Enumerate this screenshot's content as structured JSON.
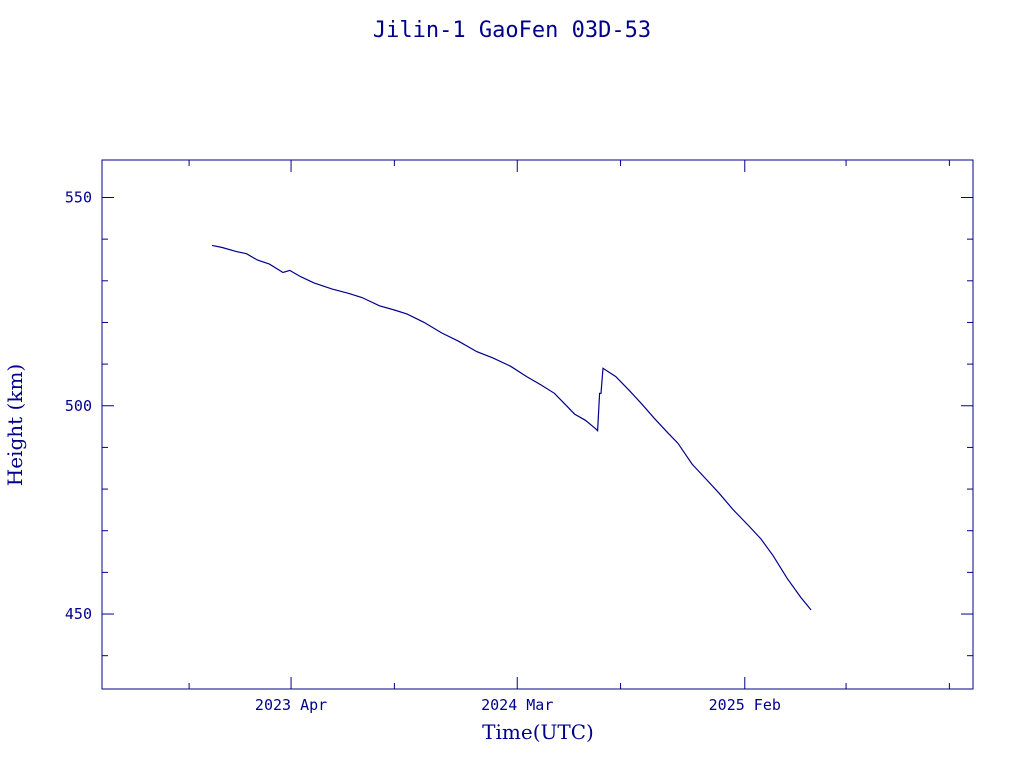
{
  "chart_data": {
    "type": "line",
    "title": "Jilin-1 GaoFen 03D-53",
    "xlabel": "Time(UTC)",
    "ylabel": "Height (km)",
    "ylim": [
      432,
      559
    ],
    "xlim": [
      "2022-06-25",
      "2026-01-05"
    ],
    "y_major_ticks": [
      450,
      500,
      550
    ],
    "y_minor_step": 10,
    "x_major_ticks": [
      {
        "label": "2023 Apr",
        "date": "2023-04-01"
      },
      {
        "label": "2024 Mar",
        "date": "2024-03-01"
      },
      {
        "label": "2025 Feb",
        "date": "2025-02-01"
      }
    ],
    "x_minor_ticks": [
      "2022-11-01",
      "2023-04-01",
      "2023-09-01",
      "2024-03-01",
      "2024-08-01",
      "2025-02-01",
      "2025-07-01",
      "2025-12-01"
    ],
    "grid": false,
    "series": [
      {
        "x": [
          "2022-12-05",
          "2022-12-20",
          "2023-01-10",
          "2023-01-25",
          "2023-02-10",
          "2023-02-28",
          "2023-03-20",
          "2023-03-30",
          "2023-04-15",
          "2023-05-05",
          "2023-06-01",
          "2023-06-25",
          "2023-07-15",
          "2023-08-10",
          "2023-09-01",
          "2023-09-20",
          "2023-10-15",
          "2023-11-10",
          "2023-12-05",
          "2024-01-01",
          "2024-01-25",
          "2024-02-20",
          "2024-03-15",
          "2024-04-05",
          "2024-04-25",
          "2024-05-10",
          "2024-05-25",
          "2024-06-10",
          "2024-06-25",
          "2024-06-28",
          "2024-07-01",
          "2024-07-03",
          "2024-07-06",
          "2024-07-25",
          "2024-08-15",
          "2024-09-01",
          "2024-09-20",
          "2024-10-10",
          "2024-10-25",
          "2024-11-15",
          "2024-12-05",
          "2024-12-25",
          "2025-01-15",
          "2025-02-05",
          "2025-02-25",
          "2025-03-15",
          "2025-04-05",
          "2025-04-25",
          "2025-05-10"
        ],
        "values": [
          538.5,
          538.0,
          537.0,
          536.5,
          535.0,
          534.0,
          532.0,
          532.5,
          531.0,
          529.5,
          528.0,
          527.0,
          526.0,
          524.0,
          523.0,
          522.0,
          520.0,
          517.5,
          515.5,
          513.0,
          511.5,
          509.5,
          507.0,
          505.0,
          503.0,
          500.5,
          498.0,
          496.5,
          494.5,
          494.0,
          503.0,
          503.0,
          509.0,
          507.0,
          503.5,
          500.5,
          497.0,
          493.5,
          491.0,
          486.0,
          482.5,
          479.0,
          475.0,
          471.5,
          468.0,
          464.0,
          458.5,
          454.0,
          451.0
        ]
      }
    ]
  }
}
